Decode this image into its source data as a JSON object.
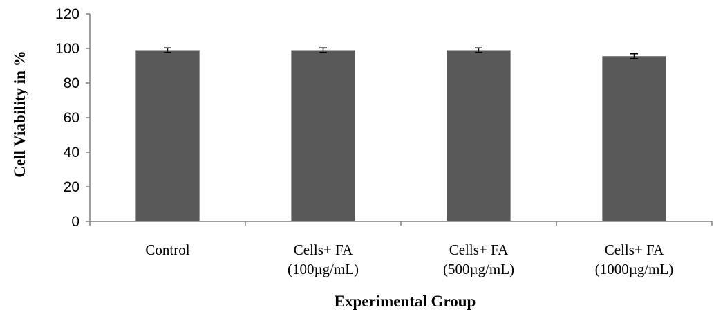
{
  "chart_data": {
    "type": "bar",
    "categories": [
      [
        "Control"
      ],
      [
        "Cells+  FA",
        "(100µg/mL)"
      ],
      [
        "Cells+ FA",
        "(500µg/mL)"
      ],
      [
        "Cells+  FA",
        "(1000µg/mL)"
      ]
    ],
    "values": [
      99,
      99,
      99,
      95.5
    ],
    "errors": [
      1.3,
      1.3,
      1.3,
      1.4
    ],
    "xlabel": "Experimental Group",
    "ylabel": "Cell Viability in %",
    "ylim": [
      0,
      120
    ],
    "yticks": [
      0,
      20,
      40,
      60,
      80,
      100,
      120
    ],
    "bar_color": "#595959",
    "grid": false,
    "legend": "none"
  }
}
